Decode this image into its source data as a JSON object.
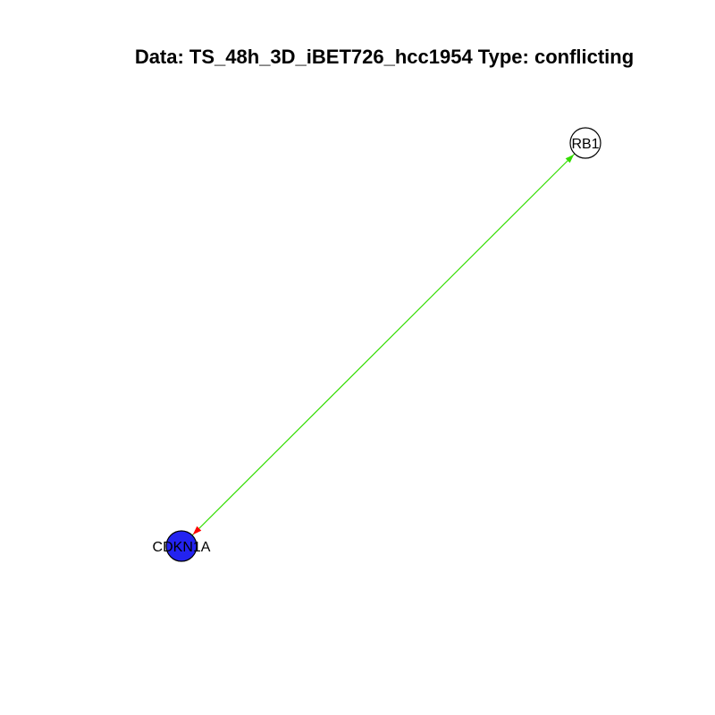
{
  "title": "Data: TS_48h_3D_iBET726_hcc1954 Type: conflicting",
  "nodes": [
    {
      "id": "RB1",
      "label": "RB1",
      "fill": "#ffffff",
      "stroke": "#000000"
    },
    {
      "id": "CDKN1A",
      "label": "CDKN1A",
      "fill": "#2323f0",
      "stroke": "#000000"
    }
  ],
  "edges": [
    {
      "from": "CDKN1A",
      "to": "RB1",
      "color": "#33dd00",
      "arrow": "to",
      "arrow_color": "#33dd00"
    },
    {
      "from": "RB1",
      "to": "CDKN1A",
      "color": "#33dd00",
      "arrow": "to",
      "arrow_color": "#ff0000"
    }
  ]
}
